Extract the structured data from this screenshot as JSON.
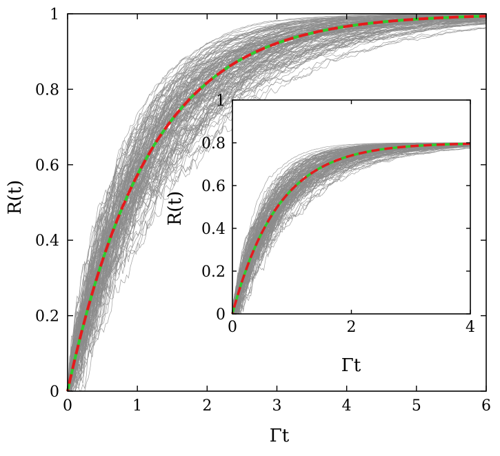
{
  "colors": {
    "trajectories": "#8c8c8c",
    "mean_dashed": "#e41a1c",
    "theory_dashed": "#2ecc2e",
    "frame": "#000000",
    "background": "#ffffff"
  },
  "chart_data": [
    {
      "type": "line",
      "panel": "main",
      "xlabel": "Γt",
      "ylabel": "R(t)",
      "xlim": [
        0,
        6
      ],
      "ylim": [
        0,
        1
      ],
      "xticks": [
        0,
        1,
        2,
        3,
        4,
        5,
        6
      ],
      "yticks": [
        0,
        0.2,
        0.4,
        0.6,
        0.8,
        1
      ],
      "xtick_labels": [
        "0",
        "1",
        "2",
        "3",
        "4",
        "5",
        "6"
      ],
      "ytick_labels": [
        "0",
        "0.2",
        "0.4",
        "0.6",
        "0.8",
        "1"
      ],
      "asymptote": 1.0,
      "rate": 0.85,
      "series": [
        {
          "role": "trajectories",
          "style": "thin gray lines",
          "count": 150,
          "x": [
            0,
            0.5,
            1,
            1.5,
            2,
            2.5,
            3,
            3.5,
            4,
            5,
            6
          ],
          "y_min": [
            0,
            0.28,
            0.45,
            0.62,
            0.77,
            0.84,
            0.9,
            0.94,
            0.97,
            0.99,
            1
          ],
          "y_max": [
            0.05,
            0.52,
            0.75,
            0.87,
            0.93,
            0.96,
            0.98,
            0.99,
            1,
            1,
            1
          ]
        },
        {
          "role": "mean",
          "style": "red dashed",
          "x": [
            0,
            0.5,
            1,
            1.5,
            2,
            2.5,
            3,
            3.5,
            4,
            4.5,
            5,
            5.5,
            6
          ],
          "y": [
            0,
            0.35,
            0.57,
            0.72,
            0.82,
            0.88,
            0.92,
            0.95,
            0.97,
            0.98,
            0.99,
            0.995,
            1
          ]
        },
        {
          "role": "theory",
          "style": "green dashed",
          "x": [
            0,
            0.5,
            1,
            1.5,
            2,
            2.5,
            3,
            3.5,
            4,
            4.5,
            5,
            5.5,
            6
          ],
          "y": [
            0,
            0.35,
            0.57,
            0.72,
            0.82,
            0.88,
            0.92,
            0.95,
            0.97,
            0.98,
            0.99,
            0.995,
            1
          ]
        }
      ]
    },
    {
      "type": "line",
      "panel": "inset",
      "xlabel": "Γt",
      "ylabel": "R(t)",
      "xlim": [
        0,
        4
      ],
      "ylim": [
        0,
        1
      ],
      "xticks": [
        0,
        2,
        4
      ],
      "yticks": [
        0,
        0.2,
        0.4,
        0.6,
        0.8,
        1
      ],
      "xtick_labels": [
        "0",
        "2",
        "4"
      ],
      "ytick_labels": [
        "0",
        "0.2",
        "0.4",
        "0.6",
        "0.8",
        "1"
      ],
      "asymptote": 0.8,
      "rate": 1.3,
      "series": [
        {
          "role": "trajectories",
          "style": "thin gray lines",
          "count": 150,
          "x": [
            0,
            0.5,
            1,
            1.5,
            2,
            2.5,
            3,
            3.5,
            4
          ],
          "y_min": [
            0,
            0.33,
            0.55,
            0.67,
            0.74,
            0.77,
            0.79,
            0.8,
            0.8
          ],
          "y_max": [
            0.05,
            0.55,
            0.72,
            0.77,
            0.79,
            0.8,
            0.8,
            0.8,
            0.8
          ]
        },
        {
          "role": "mean",
          "style": "red dashed",
          "x": [
            0,
            0.5,
            1,
            1.5,
            2,
            2.5,
            3,
            3.5,
            4
          ],
          "y": [
            0,
            0.38,
            0.58,
            0.69,
            0.74,
            0.77,
            0.785,
            0.793,
            0.797
          ]
        },
        {
          "role": "theory",
          "style": "green dashed",
          "x": [
            0,
            0.5,
            1,
            1.5,
            2,
            2.5,
            3,
            3.5,
            4
          ],
          "y": [
            0,
            0.38,
            0.58,
            0.69,
            0.74,
            0.77,
            0.785,
            0.793,
            0.797
          ]
        }
      ]
    }
  ]
}
